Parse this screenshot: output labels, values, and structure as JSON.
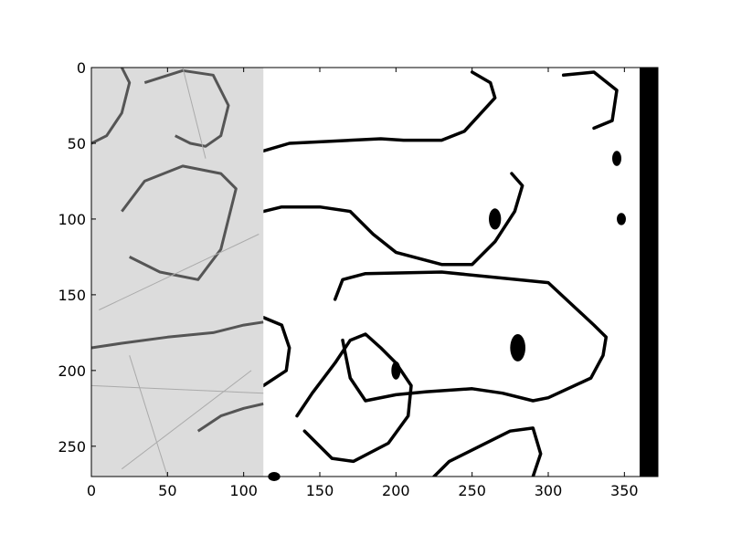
{
  "chart_data": {
    "type": "image",
    "title": "",
    "xlabel": "",
    "ylabel": "",
    "xlim": [
      0,
      372
    ],
    "ylim": [
      270,
      0
    ],
    "y_inverted": true,
    "x_ticks": [
      0,
      50,
      100,
      150,
      200,
      250,
      300,
      350
    ],
    "x_tick_labels": [
      "0",
      "50",
      "100",
      "150",
      "200",
      "250",
      "300",
      "350"
    ],
    "y_ticks": [
      0,
      50,
      100,
      150,
      200,
      250
    ],
    "y_tick_labels": [
      "0",
      "50",
      "100",
      "150",
      "200",
      "250"
    ],
    "grid": false,
    "regions": [
      {
        "name": "grayscale-micrograph",
        "x_range": [
          0,
          113
        ],
        "fill": "#dcdcdc"
      },
      {
        "name": "binary-threshold",
        "x_range": [
          113,
          360
        ],
        "fill": "#ffffff"
      },
      {
        "name": "black-strip",
        "x_range": [
          360,
          372
        ],
        "fill": "#000000"
      }
    ],
    "crystal_outlines_binary": [
      [
        [
          113,
          55
        ],
        [
          130,
          50
        ],
        [
          190,
          47
        ],
        [
          205,
          48
        ],
        [
          230,
          48
        ],
        [
          245,
          42
        ],
        [
          265,
          20
        ],
        [
          262,
          10
        ],
        [
          250,
          3
        ]
      ],
      [
        [
          113,
          95
        ],
        [
          125,
          92
        ],
        [
          150,
          92
        ],
        [
          170,
          95
        ],
        [
          185,
          110
        ],
        [
          200,
          122
        ],
        [
          230,
          130
        ],
        [
          250,
          130
        ],
        [
          265,
          115
        ],
        [
          278,
          95
        ],
        [
          283,
          78
        ],
        [
          276,
          70
        ]
      ],
      [
        [
          160,
          153
        ],
        [
          165,
          140
        ],
        [
          180,
          136
        ],
        [
          230,
          135
        ],
        [
          260,
          138
        ],
        [
          300,
          142
        ],
        [
          330,
          170
        ],
        [
          338,
          178
        ],
        [
          336,
          190
        ],
        [
          328,
          205
        ],
        [
          300,
          218
        ],
        [
          290,
          220
        ],
        [
          270,
          215
        ],
        [
          250,
          212
        ],
        [
          220,
          214
        ],
        [
          200,
          216
        ],
        [
          180,
          220
        ],
        [
          170,
          205
        ],
        [
          165,
          180
        ]
      ],
      [
        [
          135,
          230
        ],
        [
          145,
          215
        ],
        [
          160,
          195
        ],
        [
          170,
          180
        ],
        [
          180,
          176
        ],
        [
          190,
          185
        ],
        [
          200,
          195
        ],
        [
          210,
          210
        ],
        [
          208,
          230
        ],
        [
          195,
          248
        ],
        [
          172,
          260
        ],
        [
          158,
          258
        ],
        [
          140,
          240
        ]
      ],
      [
        [
          113,
          165
        ],
        [
          125,
          170
        ],
        [
          130,
          185
        ],
        [
          128,
          200
        ],
        [
          113,
          210
        ]
      ],
      [
        [
          225,
          270
        ],
        [
          235,
          260
        ],
        [
          255,
          250
        ],
        [
          275,
          240
        ],
        [
          290,
          238
        ],
        [
          295,
          255
        ],
        [
          290,
          270
        ]
      ],
      [
        [
          310,
          5
        ],
        [
          330,
          3
        ],
        [
          345,
          15
        ],
        [
          342,
          35
        ],
        [
          330,
          40
        ]
      ]
    ],
    "crystal_outlines_gray": [
      [
        [
          35,
          10
        ],
        [
          60,
          2
        ],
        [
          80,
          5
        ],
        [
          90,
          25
        ],
        [
          85,
          45
        ],
        [
          75,
          52
        ],
        [
          65,
          50
        ],
        [
          55,
          45
        ]
      ],
      [
        [
          20,
          95
        ],
        [
          35,
          75
        ],
        [
          60,
          65
        ],
        [
          85,
          70
        ],
        [
          95,
          80
        ],
        [
          85,
          120
        ],
        [
          70,
          140
        ],
        [
          45,
          135
        ],
        [
          25,
          125
        ]
      ],
      [
        [
          0,
          185
        ],
        [
          20,
          182
        ],
        [
          50,
          178
        ],
        [
          80,
          175
        ],
        [
          100,
          170
        ],
        [
          113,
          168
        ]
      ],
      [
        [
          0,
          50
        ],
        [
          10,
          45
        ],
        [
          20,
          30
        ],
        [
          25,
          10
        ],
        [
          20,
          0
        ]
      ],
      [
        [
          70,
          240
        ],
        [
          85,
          230
        ],
        [
          100,
          225
        ],
        [
          113,
          222
        ]
      ]
    ],
    "blobs_binary": [
      [
        265,
        100,
        4,
        7
      ],
      [
        280,
        185,
        5,
        9
      ],
      [
        200,
        200,
        3,
        6
      ],
      [
        120,
        270,
        4,
        3
      ],
      [
        345,
        60,
        3,
        5
      ],
      [
        348,
        100,
        3,
        4
      ]
    ]
  }
}
